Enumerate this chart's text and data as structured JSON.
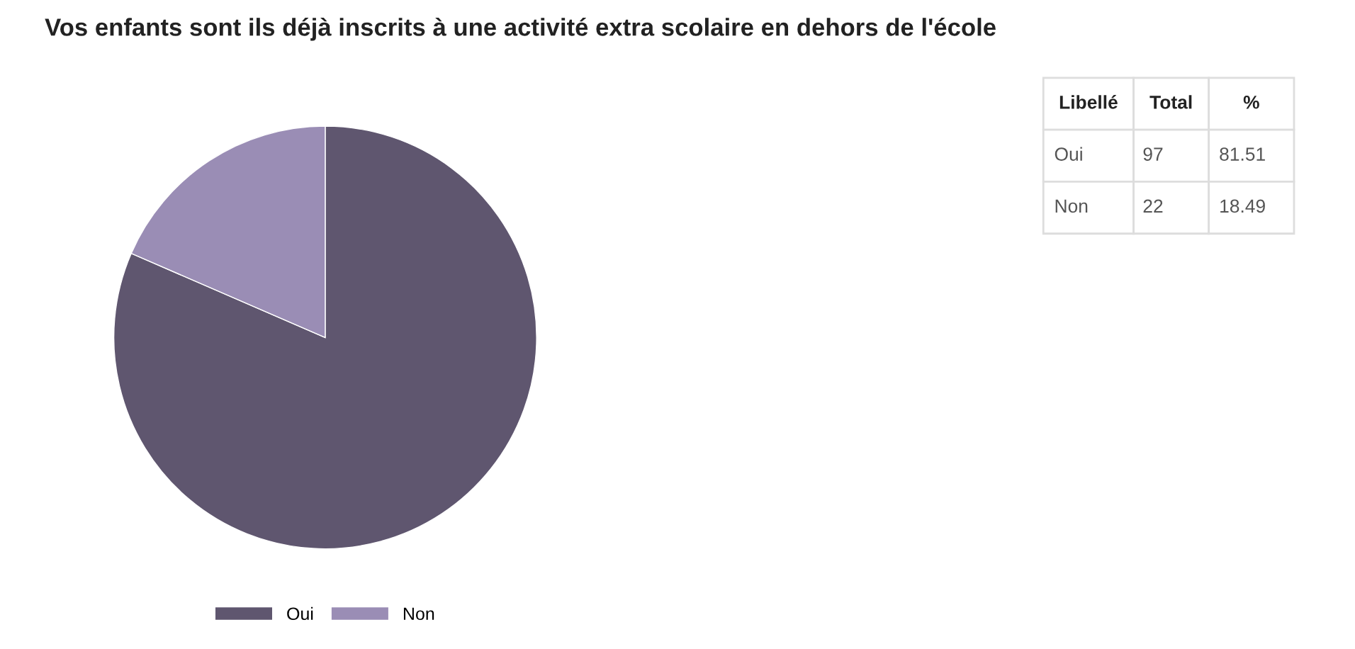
{
  "chart_data": {
    "type": "pie",
    "title": "Vos enfants sont ils déjà inscrits à une activité extra scolaire en dehors de l'école",
    "categories": [
      "Oui",
      "Non"
    ],
    "values": [
      81.51,
      18.49
    ],
    "colors": [
      "#5f566f",
      "#9a8db5"
    ],
    "legend": "bottom",
    "annotations": [
      "Libellé",
      "Total",
      "%",
      "Oui",
      "97",
      "81.51",
      "Non",
      "22",
      "18.49"
    ]
  }
}
